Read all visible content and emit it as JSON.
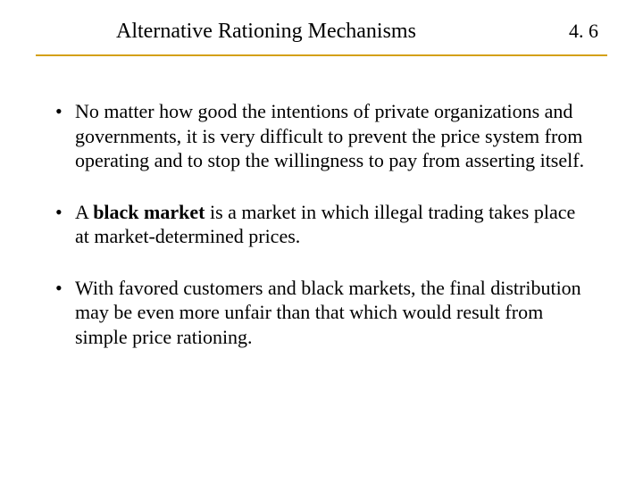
{
  "header": {
    "title": "Alternative Rationing Mechanisms",
    "page_number": "4. 6"
  },
  "style": {
    "rule_color": "#d4a017",
    "title_fontsize": 24,
    "body_fontsize": 22,
    "pagenum_fontsize": 22,
    "font_family": "Times New Roman",
    "text_color": "#000000",
    "background_color": "#ffffff"
  },
  "bullets": [
    {
      "runs": [
        {
          "text": "No matter how good the intentions of private organizations and governments, it is very difficult to prevent the price system from operating and to stop the willingness to pay from asserting itself.",
          "bold": false
        }
      ]
    },
    {
      "runs": [
        {
          "text": "A ",
          "bold": false
        },
        {
          "text": "black market",
          "bold": true
        },
        {
          "text": " is a market in which illegal trading takes place at market-determined prices.",
          "bold": false
        }
      ]
    },
    {
      "runs": [
        {
          "text": "With favored customers and black markets, the final distribution may be even more unfair than that which would result from simple price rationing.",
          "bold": false
        }
      ]
    }
  ]
}
